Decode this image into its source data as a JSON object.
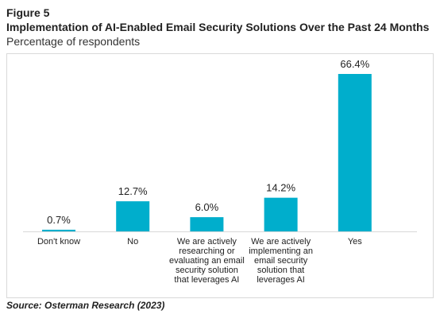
{
  "figure": {
    "label": "Figure 5",
    "title": "Implementation of AI-Enabled Email Security Solutions Over the Past 24 Months",
    "subtitle": "Percentage of respondents",
    "source": "Source: Osterman Research (2023)"
  },
  "colors": {
    "bar": "#00AECC",
    "axis": "#d9d9d9",
    "text": "#222222"
  },
  "chart_data": {
    "type": "bar",
    "title": "Implementation of AI-Enabled Email Security Solutions Over the Past 24 Months",
    "subtitle": "Percentage of respondents",
    "categories": [
      [
        "Don't know"
      ],
      [
        "No"
      ],
      [
        "We are actively",
        "researching or",
        "evaluating an email",
        "security solution",
        "that leverages AI"
      ],
      [
        "We are actively",
        "implementing an",
        "email security",
        "solution that",
        "leverages AI"
      ],
      [
        "Yes"
      ]
    ],
    "values": [
      0.7,
      12.7,
      6.0,
      14.2,
      66.4
    ],
    "value_labels": [
      "0.7%",
      "12.7%",
      "6.0%",
      "14.2%",
      "66.4%"
    ],
    "ylim": [
      0,
      66.4
    ],
    "grid": false,
    "legend": "none"
  }
}
